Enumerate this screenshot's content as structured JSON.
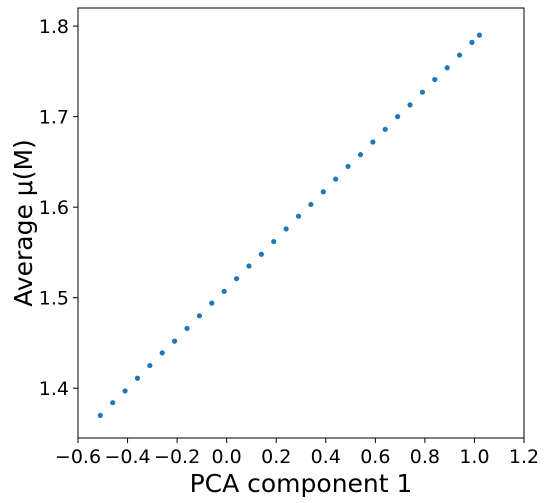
{
  "chart_data": {
    "type": "scatter",
    "xlabel": "PCA component 1",
    "ylabel": "Average  μ(M)",
    "series": [
      {
        "color": "#1f77b4",
        "x": [
          -0.51,
          -0.46,
          -0.41,
          -0.36,
          -0.31,
          -0.26,
          -0.21,
          -0.16,
          -0.11,
          -0.06,
          -0.01,
          0.04,
          0.09,
          0.14,
          0.19,
          0.24,
          0.29,
          0.34,
          0.39,
          0.44,
          0.49,
          0.54,
          0.59,
          0.64,
          0.69,
          0.74,
          0.79,
          0.84,
          0.89,
          0.94,
          0.99,
          1.02
        ],
        "values": [
          1.37,
          1.384,
          1.397,
          1.411,
          1.425,
          1.439,
          1.452,
          1.466,
          1.48,
          1.494,
          1.507,
          1.521,
          1.535,
          1.548,
          1.562,
          1.576,
          1.59,
          1.603,
          1.617,
          1.631,
          1.645,
          1.658,
          1.672,
          1.686,
          1.7,
          1.713,
          1.727,
          1.741,
          1.754,
          1.768,
          1.782,
          1.79
        ]
      }
    ],
    "xlim": [
      -0.6,
      1.2
    ],
    "xticks": [
      {
        "value": -0.6,
        "label": "−0.6"
      },
      {
        "value": -0.4,
        "label": "−0.4"
      },
      {
        "value": -0.2,
        "label": "−0.2"
      },
      {
        "value": 0,
        "label": "0.0"
      },
      0.2,
      0.4,
      0.6,
      0.8,
      {
        "value": 1,
        "label": "1.0"
      },
      1.2
    ],
    "ylim": [
      1.345,
      1.82
    ],
    "yticks": [
      1.4,
      1.5,
      1.6,
      1.7,
      1.8
    ]
  }
}
